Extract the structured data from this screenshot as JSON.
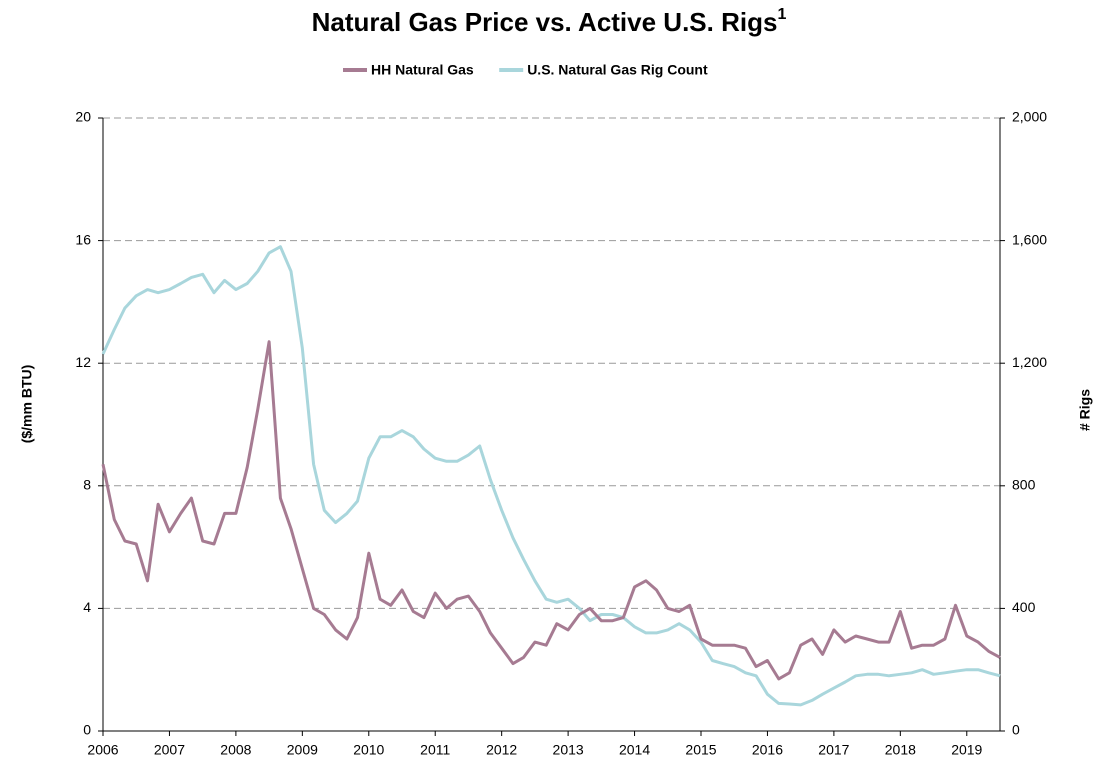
{
  "chart_data": {
    "type": "line",
    "title": "Natural Gas Price vs. Active U.S. Rigs",
    "title_superscript": "1",
    "ylabel": "($/mm BTU)",
    "y2label": "# Rigs",
    "x": [
      2006,
      2006.17,
      2006.33,
      2006.5,
      2006.67,
      2006.83,
      2007,
      2007.17,
      2007.33,
      2007.5,
      2007.67,
      2007.83,
      2008,
      2008.17,
      2008.33,
      2008.5,
      2008.67,
      2008.83,
      2009,
      2009.17,
      2009.33,
      2009.5,
      2009.67,
      2009.83,
      2010,
      2010.17,
      2010.33,
      2010.5,
      2010.67,
      2010.83,
      2011,
      2011.17,
      2011.33,
      2011.5,
      2011.67,
      2011.83,
      2012,
      2012.17,
      2012.33,
      2012.5,
      2012.67,
      2012.83,
      2013,
      2013.17,
      2013.33,
      2013.5,
      2013.67,
      2013.83,
      2014,
      2014.17,
      2014.33,
      2014.5,
      2014.67,
      2014.83,
      2015,
      2015.17,
      2015.33,
      2015.5,
      2015.67,
      2015.83,
      2016,
      2016.17,
      2016.33,
      2016.5,
      2016.67,
      2016.83,
      2017,
      2017.17,
      2017.33,
      2017.5,
      2017.67,
      2017.83,
      2018,
      2018.17,
      2018.33,
      2018.5,
      2018.67,
      2018.83,
      2019,
      2019.17,
      2019.33,
      2019.5
    ],
    "series": [
      {
        "name": "HH Natural Gas",
        "color": "#a67b92",
        "values": [
          8.7,
          6.9,
          6.2,
          6.1,
          4.9,
          7.4,
          6.5,
          7.1,
          7.6,
          6.2,
          6.1,
          7.1,
          7.1,
          8.6,
          10.5,
          12.7,
          7.6,
          6.6,
          5.3,
          4.0,
          3.8,
          3.3,
          3.0,
          3.7,
          5.8,
          4.3,
          4.1,
          4.6,
          3.9,
          3.7,
          4.5,
          4.0,
          4.3,
          4.4,
          3.9,
          3.2,
          2.7,
          2.2,
          2.4,
          2.9,
          2.8,
          3.5,
          3.3,
          3.8,
          4.0,
          3.6,
          3.6,
          3.7,
          4.7,
          4.9,
          4.6,
          4.0,
          3.9,
          4.1,
          3.0,
          2.8,
          2.8,
          2.8,
          2.7,
          2.1,
          2.3,
          1.7,
          1.9,
          2.8,
          3.0,
          2.5,
          3.3,
          2.9,
          3.1,
          3.0,
          2.9,
          2.9,
          3.9,
          2.7,
          2.8,
          2.8,
          3.0,
          4.1,
          3.1,
          2.9,
          2.6,
          2.4
        ]
      },
      {
        "name": "U.S. Natural Gas Rig Count",
        "color": "#a9d6dc",
        "axis": "y2",
        "values": [
          1230,
          1310,
          1380,
          1420,
          1440,
          1430,
          1440,
          1460,
          1480,
          1490,
          1430,
          1470,
          1440,
          1460,
          1500,
          1560,
          1580,
          1500,
          1250,
          870,
          720,
          680,
          710,
          750,
          890,
          960,
          960,
          980,
          960,
          920,
          890,
          880,
          880,
          900,
          930,
          820,
          720,
          630,
          560,
          490,
          430,
          420,
          430,
          400,
          360,
          380,
          380,
          370,
          340,
          320,
          320,
          330,
          350,
          330,
          290,
          230,
          220,
          210,
          190,
          180,
          120,
          90,
          88,
          85,
          100,
          120,
          140,
          160,
          180,
          185,
          185,
          180,
          185,
          190,
          200,
          185,
          190,
          195,
          200,
          200,
          190,
          180
        ]
      }
    ],
    "xlim": [
      2006,
      2019.5
    ],
    "xticks": [
      2006,
      2007,
      2008,
      2009,
      2010,
      2011,
      2012,
      2013,
      2014,
      2015,
      2016,
      2017,
      2018,
      2019
    ],
    "ylim": [
      0,
      20
    ],
    "yticks": [
      0,
      4,
      8,
      12,
      16,
      20
    ],
    "y2lim": [
      0,
      2000
    ],
    "y2ticks": [
      0,
      400,
      800,
      {
        "value": 1200,
        "label": "1,200"
      },
      {
        "value": 1600,
        "label": "1,600"
      },
      {
        "value": 2000,
        "label": "2,000"
      }
    ],
    "grid": true,
    "legend": "top"
  }
}
